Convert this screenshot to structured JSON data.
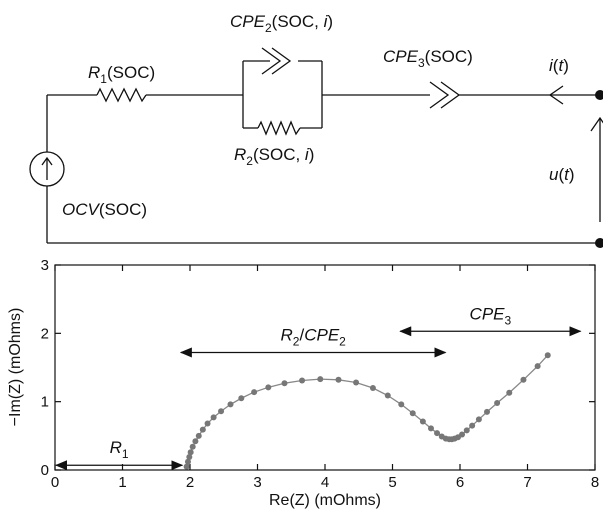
{
  "circuit": {
    "r1": {
      "sym": "R",
      "sub": "1",
      "arg": "(SOC)"
    },
    "cpe2": {
      "sym": "CPE",
      "sub": "2",
      "arg": "(SOC, ",
      "arg_i": "i",
      "arg_end": ")"
    },
    "r2": {
      "sym": "R",
      "sub": "2",
      "arg": "(SOC, ",
      "arg_i": "i",
      "arg_end": ")"
    },
    "cpe3": {
      "sym": "CPE",
      "sub": "3",
      "arg": "(SOC)"
    },
    "ocv": {
      "sym": "OCV",
      "arg": "(SOC)"
    },
    "current": {
      "sym": "i",
      "arg": "(",
      "t": "t",
      "end": ")"
    },
    "voltage": {
      "sym": "u",
      "arg": "(",
      "t": "t",
      "end": ")"
    }
  },
  "chart_data": {
    "type": "scatter",
    "xlabel": "Re(Z) (mOhms)",
    "ylabel": "−Im(Z) (mOhms)",
    "xlim": [
      0,
      8
    ],
    "ylim": [
      0,
      3
    ],
    "xticks": [
      "0",
      "1",
      "2",
      "3",
      "4",
      "5",
      "6",
      "7",
      "8"
    ],
    "yticks": [
      "0",
      "1",
      "2",
      "3"
    ],
    "grid": false,
    "series": [
      {
        "x": [
          1.95,
          1.97,
          1.99,
          2.01,
          2.04,
          2.08,
          2.13,
          2.19,
          2.26,
          2.35,
          2.46,
          2.6,
          2.76,
          2.95,
          3.16,
          3.4,
          3.66,
          3.93,
          4.2,
          4.46,
          4.71,
          4.93,
          5.13,
          5.3,
          5.45,
          5.57,
          5.66,
          5.73,
          5.79,
          5.84,
          5.88,
          5.92,
          5.97,
          6.03,
          6.1,
          6.18,
          6.28,
          6.4,
          6.55,
          6.73,
          6.94,
          7.15,
          7.3
        ],
        "y": [
          0.05,
          0.12,
          0.19,
          0.26,
          0.34,
          0.42,
          0.5,
          0.59,
          0.68,
          0.77,
          0.86,
          0.96,
          1.05,
          1.14,
          1.21,
          1.27,
          1.31,
          1.33,
          1.32,
          1.28,
          1.2,
          1.09,
          0.96,
          0.83,
          0.71,
          0.61,
          0.54,
          0.49,
          0.46,
          0.45,
          0.45,
          0.46,
          0.48,
          0.52,
          0.58,
          0.65,
          0.74,
          0.85,
          0.98,
          1.13,
          1.32,
          1.52,
          1.68
        ]
      }
    ],
    "annotations": [
      {
        "sym": "R",
        "sub": "1",
        "x_from": 0.0,
        "x_to": 1.9,
        "y": 0.07
      },
      {
        "sym": "R",
        "sub": "2",
        "text": "/",
        "sym2": "CPE",
        "sub2": "2",
        "x_from": 1.85,
        "x_to": 5.8,
        "y": 1.72
      },
      {
        "sym": "CPE",
        "sub": "3",
        "x_from": 5.1,
        "x_to": 7.8,
        "y": 2.03
      }
    ]
  }
}
